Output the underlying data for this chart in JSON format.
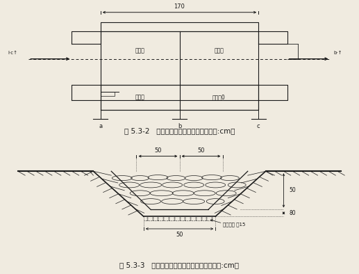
{
  "fig_width": 5.17,
  "fig_height": 3.94,
  "dpi": 100,
  "bg_color": "#f0ebe0",
  "line_color": "#1a1a1a",
  "caption1": "图 5.3-2   干砌石沉砂池平面设计图（单位:cm）",
  "caption2": "图 5.3-3   干砌石排水沟典型设计断面图（单位:cm）",
  "caption_fontsize": 7.5,
  "label_top_dim": "170",
  "label_in": "l·c↑",
  "label_out": "b·↑",
  "label_cell1": "沉砂室",
  "label_cell2": "格网室",
  "label_cell3": "沉淀室",
  "label_cell4": "格网室0",
  "label_a": "a",
  "label_b": "b",
  "label_c": "c",
  "label_50a": "50",
  "label_50b": "50",
  "label_50_vert": "50",
  "label_80_vert": "80",
  "label_bottom_50": "50",
  "label_sand": "砂砾垫层 厚15"
}
